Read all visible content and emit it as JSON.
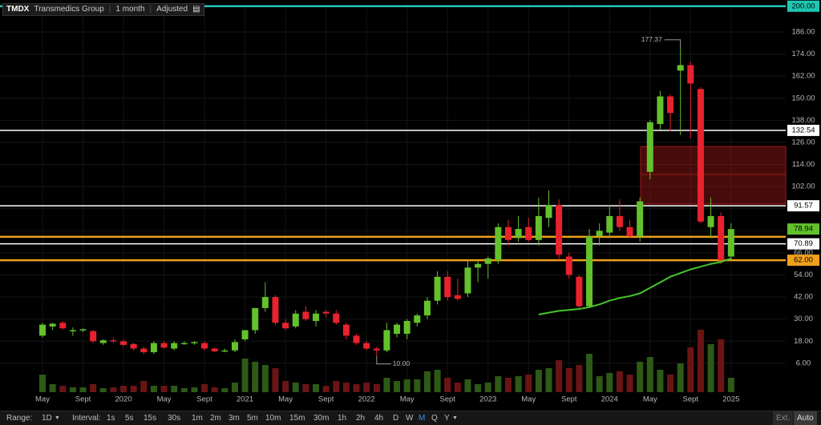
{
  "header": {
    "symbol": "TMDX",
    "name": "Transmedics Group",
    "period": "1 month",
    "adjust": "Adjusted"
  },
  "toolbar": {
    "range_label": "Range:",
    "range": "1D",
    "interval_label": "Interval:",
    "intervals": [
      "1s",
      "5s",
      "15s",
      "30s",
      "1m",
      "2m",
      "3m",
      "5m",
      "10m",
      "15m",
      "30m",
      "1h",
      "2h",
      "4h",
      "D",
      "W",
      "M",
      "Q",
      "Y"
    ],
    "selected": "M",
    "right": [
      "Ext.",
      "Auto"
    ]
  },
  "chart_data": {
    "type": "candlestick",
    "categories": [
      "May",
      null,
      null,
      null,
      "Sept",
      null,
      null,
      null,
      "2020",
      null,
      null,
      null,
      "May",
      null,
      null,
      null,
      "Sept",
      null,
      null,
      null,
      "2021",
      null,
      null,
      null,
      "May",
      null,
      null,
      null,
      "Sept",
      null,
      null,
      null,
      "2022",
      null,
      null,
      null,
      "May",
      null,
      null,
      null,
      "Sept",
      null,
      null,
      null,
      "2023",
      null,
      null,
      null,
      "May",
      null,
      null,
      null,
      "Sept",
      null,
      null,
      null,
      "2024",
      null,
      null,
      null,
      "May",
      null,
      null,
      null,
      "Sept",
      null,
      null,
      null,
      "2025"
    ],
    "open": [
      21,
      26,
      28,
      24,
      24,
      23.5,
      17,
      18.5,
      18,
      16.5,
      14,
      12,
      17,
      14,
      17,
      17,
      17,
      14,
      12.5,
      13,
      19,
      24,
      36,
      42,
      28,
      26,
      34,
      29,
      34,
      33,
      27,
      21,
      17,
      14,
      13,
      22,
      22,
      28,
      32,
      40,
      53,
      43,
      44,
      58,
      60,
      62,
      80,
      74,
      80,
      73,
      85,
      92,
      64,
      53,
      37,
      75,
      77,
      86,
      80,
      75,
      110,
      136,
      151,
      165,
      168,
      155,
      80,
      86,
      64
    ],
    "high": [
      28,
      28,
      29,
      25.5,
      25,
      24,
      19,
      20,
      19,
      17,
      15,
      18,
      18,
      18,
      18,
      18,
      18,
      14.5,
      14,
      19,
      24,
      36,
      50,
      43,
      30,
      35,
      37,
      35,
      35,
      35,
      28,
      22,
      18,
      15,
      28,
      28,
      30,
      33,
      42,
      56,
      56,
      52,
      62,
      62,
      64,
      82,
      84,
      86,
      85,
      96,
      100,
      95,
      66,
      54,
      79,
      82,
      92,
      95,
      84,
      96,
      138,
      154,
      152,
      177.37,
      170,
      156,
      96,
      88,
      82
    ],
    "low": [
      20,
      24,
      24.5,
      21,
      23,
      17,
      16,
      17,
      15,
      13,
      11,
      11,
      14,
      13,
      16,
      16,
      13,
      12,
      12,
      12,
      18,
      22,
      34,
      27,
      24,
      25,
      29,
      26,
      31,
      27,
      19,
      16,
      13,
      10,
      12,
      20,
      19,
      26,
      30,
      38,
      40,
      40,
      42,
      50,
      52,
      60,
      70,
      72,
      72,
      70,
      80,
      62,
      52,
      36,
      36,
      70,
      74,
      78,
      74,
      72,
      106,
      133,
      132,
      130,
      128,
      82,
      74,
      60,
      62
    ],
    "close": [
      27,
      27.5,
      25,
      24,
      24.5,
      18,
      18.5,
      18,
      16,
      14,
      12,
      17,
      14.5,
      17,
      17,
      17.5,
      14,
      12.5,
      13,
      17.5,
      24,
      36,
      42,
      28,
      25,
      33,
      30,
      33,
      33,
      28,
      21,
      17,
      14,
      13,
      24,
      27,
      29,
      32,
      40,
      53,
      42,
      41,
      58,
      60,
      63,
      80,
      73,
      79,
      73,
      86,
      92,
      65,
      54,
      37,
      75,
      78,
      86,
      80,
      75,
      94,
      137,
      151,
      142,
      168,
      158,
      83,
      86,
      62,
      78.94
    ],
    "up_color": "#63c12c",
    "down_color": "#e8222e",
    "ma": {
      "color": "#45c52a",
      "values": [
        null,
        null,
        null,
        null,
        null,
        null,
        null,
        null,
        null,
        null,
        null,
        null,
        null,
        null,
        null,
        null,
        null,
        null,
        null,
        null,
        null,
        null,
        null,
        null,
        null,
        null,
        null,
        null,
        null,
        null,
        null,
        null,
        null,
        null,
        null,
        null,
        null,
        null,
        null,
        null,
        null,
        null,
        null,
        null,
        null,
        null,
        null,
        null,
        null,
        32.5,
        33.5,
        34.5,
        35,
        35.5,
        36.5,
        38,
        40,
        41.5,
        42.5,
        44,
        47,
        50,
        53,
        55,
        57,
        58.5,
        60,
        61,
        63
      ]
    },
    "volume": {
      "vlim": [
        0,
        100
      ],
      "values": [
        22,
        10,
        8,
        6,
        6,
        10,
        5,
        6,
        8,
        8,
        14,
        8,
        8,
        8,
        5,
        6,
        10,
        6,
        5,
        12,
        42,
        38,
        34,
        30,
        14,
        12,
        10,
        10,
        8,
        14,
        12,
        10,
        12,
        10,
        18,
        14,
        16,
        16,
        26,
        28,
        18,
        12,
        16,
        10,
        12,
        20,
        18,
        20,
        22,
        28,
        30,
        40,
        30,
        34,
        48,
        20,
        24,
        26,
        22,
        38,
        44,
        28,
        22,
        36,
        56,
        78,
        60,
        66,
        18
      ]
    },
    "ylim": [
      -9.7,
      201.2
    ],
    "yticks": [
      {
        "value": 6,
        "label": "6.00"
      },
      {
        "value": 18,
        "label": "18.00"
      },
      {
        "value": 30,
        "label": "30.00"
      },
      {
        "value": 42,
        "label": "42.00"
      },
      {
        "value": 54,
        "label": "54.00"
      },
      {
        "value": 66,
        "label": "66.00"
      },
      {
        "value": 78,
        "label": "78.00"
      },
      {
        "value": 90,
        "label": "90.00"
      },
      {
        "value": 102,
        "label": "102.00"
      },
      {
        "value": 114,
        "label": "114.00"
      },
      {
        "value": 126,
        "label": "126.00"
      },
      {
        "value": 138,
        "label": "138.00"
      },
      {
        "value": 150,
        "label": "150.00"
      },
      {
        "value": 162,
        "label": "162.00"
      },
      {
        "value": 174,
        "label": "174.00"
      },
      {
        "value": 186,
        "label": "186.00"
      }
    ],
    "grid": true,
    "levels": [
      {
        "value": 200,
        "label": "200.00",
        "color": "#1fc7b3"
      },
      {
        "value": 132.54,
        "label": "132.54",
        "color": "#ffffff"
      },
      {
        "value": 91.57,
        "label": "91.57",
        "color": "#ffffff"
      },
      {
        "value": 74.7,
        "color": "#f0a01c"
      },
      {
        "value": 70.89,
        "label": "70.89",
        "color": "#ffffff"
      },
      {
        "value": 62,
        "label": "62.00",
        "color": "#f0a01c"
      }
    ],
    "last": {
      "value": 78.94,
      "label": "78.94",
      "color": "#63c12c"
    },
    "zones": [
      {
        "from": 92.5,
        "to": 123.8,
        "mid": 108.6,
        "color": "#a01818"
      }
    ],
    "annotations": [
      {
        "text": "177.37",
        "value": 177.37
      },
      {
        "text": "10.00",
        "value": 10
      }
    ]
  }
}
